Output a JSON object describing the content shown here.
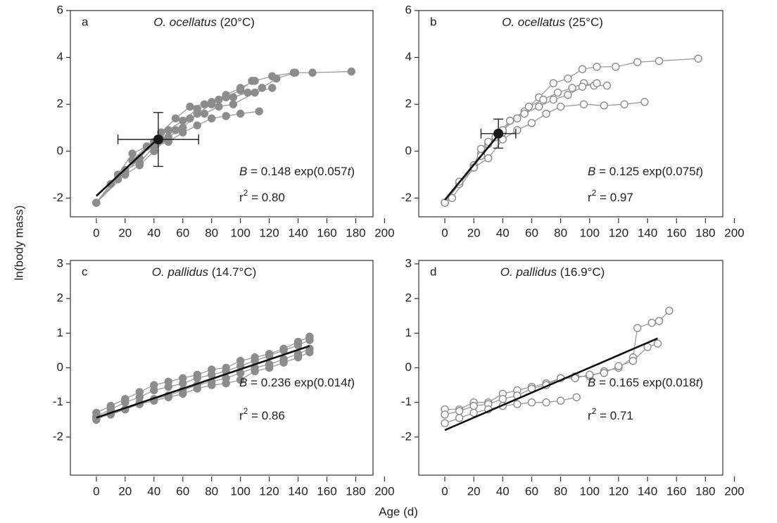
{
  "ylabel": "ln(body mass)",
  "xlabel": "Age (d)",
  "chart_data": [
    {
      "type": "line",
      "letter": "a",
      "title": [
        "O. ocellatus",
        " (20°C)"
      ],
      "equation": [
        "B",
        " = 0.148 exp(0.057",
        "t",
        ")"
      ],
      "r2": [
        "r",
        "2",
        " = 0.80"
      ],
      "marker": "filled",
      "color": "#8c8c8c",
      "line_color": "#9a9a9a",
      "fit_color": "#111111",
      "xlim": [
        -18,
        192
      ],
      "ylim": [
        -2.8,
        6
      ],
      "xticks": [
        0,
        20,
        40,
        60,
        80,
        100,
        120,
        140,
        160,
        180,
        200
      ],
      "yticks": [
        -2,
        0,
        2,
        4,
        6
      ],
      "series": [
        {
          "x": [
            0,
            10,
            20,
            30,
            40,
            50,
            60,
            70,
            80,
            90,
            100,
            110,
            122,
            137,
            150,
            177
          ],
          "values": [
            -2.2,
            -1.4,
            -0.9,
            -0.3,
            0.4,
            0.9,
            1.3,
            1.8,
            2.1,
            2.4,
            2.7,
            3.0,
            3.2,
            3.35,
            3.35,
            3.4
          ]
        },
        {
          "x": [
            0,
            15,
            25,
            35,
            45,
            55,
            65,
            75,
            85,
            95,
            105,
            115,
            125,
            138
          ],
          "values": [
            -2.2,
            -1.2,
            -0.4,
            0.2,
            0.8,
            1.4,
            1.9,
            2.0,
            2.2,
            2.3,
            2.5,
            2.7,
            3.1,
            3.35
          ]
        },
        {
          "x": [
            0,
            15,
            25,
            35,
            45,
            55,
            65,
            75,
            85,
            95,
            110,
            122
          ],
          "values": [
            -2.2,
            -1.0,
            -0.1,
            0.2,
            0.5,
            0.9,
            1.4,
            1.6,
            1.9,
            2.0,
            2.5,
            2.7
          ]
        },
        {
          "x": [
            0,
            20,
            30,
            40,
            50,
            60,
            70,
            80,
            90,
            100,
            113
          ],
          "values": [
            -2.2,
            -0.8,
            -0.5,
            0.2,
            0.4,
            0.8,
            1.1,
            1.4,
            1.5,
            1.6,
            1.7
          ]
        },
        {
          "x": [
            0,
            20,
            30,
            40,
            50,
            60,
            70,
            80,
            90,
            100,
            108
          ],
          "values": [
            -2.2,
            -1.0,
            -0.6,
            0.0,
            0.6,
            1.0,
            1.6,
            2.0,
            2.3,
            2.6,
            3.0
          ]
        }
      ],
      "fit": {
        "x": [
          0,
          45
        ],
        "values": [
          -1.91,
          0.66
        ]
      },
      "mean": {
        "x": 43,
        "y": 0.5,
        "xerr": 28,
        "yerr": 1.15
      }
    },
    {
      "type": "line",
      "letter": "b",
      "title": [
        "O. ocellatus",
        " (25°C)"
      ],
      "equation": [
        "B",
        " = 0.125 exp(0.075",
        "t",
        ")"
      ],
      "r2": [
        "r",
        "2",
        " = 0.97"
      ],
      "marker": "open",
      "color": "#8c8c8c",
      "line_color": "#9a9a9a",
      "fit_color": "#111111",
      "xlim": [
        -18,
        192
      ],
      "ylim": [
        -2.8,
        6
      ],
      "xticks": [
        0,
        20,
        40,
        60,
        80,
        100,
        120,
        140,
        160,
        180,
        200
      ],
      "yticks": [
        -2,
        0,
        2,
        4,
        6
      ],
      "series": [
        {
          "x": [
            0,
            10,
            20,
            25,
            30,
            40,
            45,
            55,
            65,
            75,
            85,
            95,
            105,
            118,
            133,
            148,
            175
          ],
          "values": [
            -2.2,
            -1.4,
            -0.7,
            -0.1,
            0.3,
            0.8,
            1.3,
            1.7,
            2.3,
            2.9,
            3.1,
            3.5,
            3.6,
            3.6,
            3.8,
            3.85,
            3.95
          ]
        },
        {
          "x": [
            0,
            10,
            20,
            25,
            30,
            40,
            50,
            58,
            68,
            78,
            88,
            96,
            103,
            112
          ],
          "values": [
            -2.2,
            -1.4,
            -0.6,
            -0.2,
            0.4,
            0.9,
            1.4,
            1.9,
            2.2,
            2.5,
            2.7,
            2.9,
            2.8,
            2.8
          ]
        },
        {
          "x": [
            0,
            10,
            20,
            25,
            35,
            45,
            55,
            65,
            75,
            85,
            95,
            105
          ],
          "values": [
            -2.2,
            -1.3,
            -0.6,
            0.1,
            0.6,
            1.3,
            1.6,
            1.9,
            2.2,
            2.4,
            2.75,
            2.9
          ]
        },
        {
          "x": [
            0,
            5,
            20,
            30,
            40,
            50,
            60,
            70,
            80,
            96,
            110,
            124,
            138
          ],
          "values": [
            -2.2,
            -2.0,
            -0.7,
            -0.3,
            0.5,
            0.9,
            1.2,
            1.6,
            1.9,
            2.0,
            1.95,
            2.0,
            2.1
          ]
        }
      ],
      "fit": {
        "x": [
          0,
          38
        ],
        "values": [
          -2.08,
          0.77
        ]
      },
      "mean": {
        "x": 37,
        "y": 0.75,
        "xerr": 12,
        "yerr": 0.62
      }
    },
    {
      "type": "line",
      "letter": "c",
      "title": [
        "O. pallidus",
        " (14.7°C)"
      ],
      "equation": [
        "B",
        " = 0.236 exp(0.014",
        "t",
        ")"
      ],
      "r2": [
        "r",
        "2",
        " = 0.86"
      ],
      "marker": "filled",
      "color": "#8c8c8c",
      "line_color": "#9a9a9a",
      "fit_color": "#111111",
      "xlim": [
        -18,
        192
      ],
      "ylim": [
        -3.1,
        3.1
      ],
      "xticks": [
        0,
        20,
        40,
        60,
        80,
        100,
        120,
        140,
        160,
        180,
        200
      ],
      "yticks": [
        -2,
        -1,
        0,
        1,
        2,
        3
      ],
      "series": [
        {
          "x": [
            0,
            10,
            20,
            30,
            40,
            50,
            60,
            70,
            80,
            90,
            100,
            110,
            120,
            130,
            140,
            148
          ],
          "values": [
            -1.3,
            -1.1,
            -0.9,
            -0.7,
            -0.5,
            -0.4,
            -0.3,
            -0.2,
            -0.05,
            0.0,
            0.2,
            0.3,
            0.4,
            0.55,
            0.75,
            0.9
          ]
        },
        {
          "x": [
            0,
            10,
            20,
            30,
            40,
            50,
            60,
            70,
            80,
            90,
            100,
            110,
            120,
            130,
            140,
            148
          ],
          "values": [
            -1.4,
            -1.2,
            -1.0,
            -0.85,
            -0.65,
            -0.55,
            -0.45,
            -0.3,
            -0.2,
            -0.1,
            0.05,
            0.2,
            0.35,
            0.5,
            0.65,
            0.8
          ]
        },
        {
          "x": [
            0,
            10,
            20,
            30,
            40,
            50,
            60,
            70,
            80,
            90,
            100,
            110,
            120,
            130,
            140,
            148
          ],
          "values": [
            -1.5,
            -1.3,
            -1.2,
            -1.0,
            -0.9,
            -0.8,
            -0.65,
            -0.5,
            -0.4,
            -0.3,
            -0.15,
            0.0,
            0.1,
            0.25,
            0.4,
            0.55
          ]
        },
        {
          "x": [
            0,
            10,
            20,
            30,
            40,
            50,
            60,
            70,
            80,
            90,
            100,
            110,
            120,
            130,
            140,
            148
          ],
          "values": [
            -1.45,
            -1.35,
            -1.2,
            -1.05,
            -0.95,
            -0.85,
            -0.75,
            -0.6,
            -0.5,
            -0.45,
            -0.35,
            -0.1,
            0.0,
            0.15,
            0.3,
            0.45
          ]
        }
      ],
      "fit": {
        "x": [
          0,
          148
        ],
        "values": [
          -1.44,
          0.63
        ]
      }
    },
    {
      "type": "line",
      "letter": "d",
      "title": [
        "O. pallidus",
        " (16.9°C)"
      ],
      "equation": [
        "B",
        " = 0.165 exp(0.018",
        "t",
        ")"
      ],
      "r2": [
        "r",
        "2",
        " = 0.71"
      ],
      "marker": "open",
      "color": "#8c8c8c",
      "line_color": "#9a9a9a",
      "fit_color": "#111111",
      "xlim": [
        -18,
        192
      ],
      "ylim": [
        -3.1,
        3.1
      ],
      "xticks": [
        0,
        20,
        40,
        60,
        80,
        100,
        120,
        140,
        160,
        180,
        200
      ],
      "yticks": [
        -2,
        -1,
        0,
        1,
        2,
        3
      ],
      "series": [
        {
          "x": [
            0,
            10,
            20,
            30,
            40,
            50,
            60,
            70,
            80,
            90,
            100,
            110,
            120,
            130,
            133,
            143,
            148,
            155
          ],
          "values": [
            -1.2,
            -1.2,
            -1.0,
            -1.0,
            -0.75,
            -0.65,
            -0.55,
            -0.45,
            -0.3,
            -0.25,
            -0.25,
            -0.1,
            0.0,
            0.3,
            1.15,
            1.3,
            1.35,
            1.65
          ]
        },
        {
          "x": [
            0,
            10,
            20,
            30,
            40,
            50,
            60,
            70,
            80,
            90,
            100,
            110,
            120,
            130,
            140,
            147
          ],
          "values": [
            -1.35,
            -1.25,
            -1.1,
            -1.05,
            -0.9,
            -0.8,
            -0.6,
            -0.5,
            -0.3,
            -0.3,
            -0.2,
            -0.15,
            0.05,
            0.2,
            0.6,
            0.7
          ]
        },
        {
          "x": [
            0,
            10,
            20,
            30,
            40,
            50,
            60,
            70,
            80,
            91
          ],
          "values": [
            -1.6,
            -1.45,
            -1.3,
            -1.2,
            -1.1,
            -1.05,
            -1.0,
            -1.0,
            -0.95,
            -0.85
          ]
        }
      ],
      "fit": {
        "x": [
          0,
          147
        ],
        "values": [
          -1.8,
          0.85
        ]
      }
    }
  ]
}
